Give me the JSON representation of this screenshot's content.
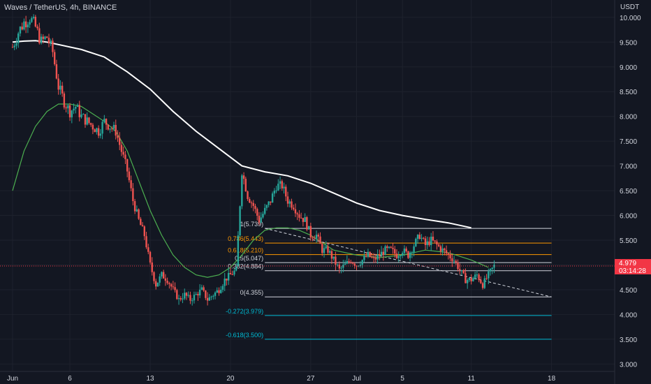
{
  "header": {
    "title": "Waves / TetherUS, 4h, BINANCE",
    "unit": "USDT"
  },
  "current_price": {
    "price": "4.979",
    "countdown": "03:14:28",
    "color": "#f23645"
  },
  "colors": {
    "background": "#131722",
    "up": "#26a69a",
    "down": "#ef5350",
    "ma_long": "#ffffff",
    "ma_short": "#4caf50",
    "fib_line": "#d1d4dc",
    "fib_orange": "#ff9800",
    "fib_teal": "#00bcd4",
    "trend": "#d1d4dc"
  },
  "chart_data": {
    "type": "candlestick",
    "title": "Waves / TetherUS, 4h, BINANCE",
    "y_axis": {
      "unit": "USDT",
      "range": [
        2.85,
        10.35
      ],
      "ticks": [
        "10.000",
        "9.500",
        "9.000",
        "8.500",
        "8.000",
        "7.500",
        "7.000",
        "6.500",
        "6.000",
        "5.500",
        "5.000",
        "4.500",
        "4.000",
        "3.500",
        "3.000"
      ]
    },
    "x_axis": {
      "range_days": [
        0,
        48
      ],
      "ticks": [
        {
          "label": "Jun",
          "day": 0
        },
        {
          "label": "6",
          "day": 5
        },
        {
          "label": "13",
          "day": 12
        },
        {
          "label": "20",
          "day": 19
        },
        {
          "label": "27",
          "day": 26
        },
        {
          "label": "Jul",
          "day": 30
        },
        {
          "label": "5",
          "day": 34
        },
        {
          "label": "11",
          "day": 40
        },
        {
          "label": "18",
          "day": 47
        }
      ]
    },
    "close_path": [
      [
        0,
        9.4
      ],
      [
        0.5,
        9.7
      ],
      [
        1,
        9.9
      ],
      [
        1.5,
        10.0
      ],
      [
        2,
        9.8
      ],
      [
        2.5,
        9.5
      ],
      [
        3,
        9.6
      ],
      [
        3.5,
        9.3
      ],
      [
        4,
        8.6
      ],
      [
        4.5,
        8.3
      ],
      [
        5,
        8.1
      ],
      [
        5.5,
        8.2
      ],
      [
        6,
        8.0
      ],
      [
        6.5,
        7.9
      ],
      [
        7,
        7.8
      ],
      [
        7.5,
        7.7
      ],
      [
        8,
        7.9
      ],
      [
        8.5,
        7.8
      ],
      [
        9,
        7.7
      ],
      [
        9.5,
        7.3
      ],
      [
        10,
        6.9
      ],
      [
        10.5,
        6.3
      ],
      [
        11,
        5.9
      ],
      [
        11.5,
        5.6
      ],
      [
        12,
        5.0
      ],
      [
        12.5,
        4.6
      ],
      [
        13,
        4.8
      ],
      [
        13.5,
        4.7
      ],
      [
        14,
        4.5
      ],
      [
        14.5,
        4.3
      ],
      [
        15,
        4.4
      ],
      [
        15.5,
        4.3
      ],
      [
        16,
        4.4
      ],
      [
        16.5,
        4.5
      ],
      [
        17,
        4.3
      ],
      [
        17.5,
        4.4
      ],
      [
        18,
        4.5
      ],
      [
        18.5,
        4.7
      ],
      [
        19,
        4.8
      ],
      [
        19.5,
        4.9
      ],
      [
        20,
        6.9
      ],
      [
        20.5,
        6.4
      ],
      [
        21,
        6.2
      ],
      [
        21.5,
        5.9
      ],
      [
        22,
        6.1
      ],
      [
        22.5,
        6.3
      ],
      [
        23,
        6.6
      ],
      [
        23.5,
        6.6
      ],
      [
        24,
        6.3
      ],
      [
        24.5,
        6.2
      ],
      [
        25,
        6.0
      ],
      [
        25.5,
        5.9
      ],
      [
        26,
        5.6
      ],
      [
        26.5,
        5.6
      ],
      [
        27,
        5.3
      ],
      [
        27.5,
        5.3
      ],
      [
        28,
        5.1
      ],
      [
        28.5,
        4.9
      ],
      [
        29,
        5.0
      ],
      [
        29.5,
        5.1
      ],
      [
        30,
        5.0
      ],
      [
        30.5,
        5.1
      ],
      [
        31,
        5.2
      ],
      [
        31.5,
        5.1
      ],
      [
        32,
        5.2
      ],
      [
        32.5,
        5.3
      ],
      [
        33,
        5.3
      ],
      [
        33.5,
        5.2
      ],
      [
        34,
        5.3
      ],
      [
        34.5,
        5.2
      ],
      [
        35,
        5.4
      ],
      [
        35.5,
        5.6
      ],
      [
        36,
        5.4
      ],
      [
        36.5,
        5.5
      ],
      [
        37,
        5.4
      ],
      [
        37.5,
        5.3
      ],
      [
        38,
        5.2
      ],
      [
        38.5,
        5.1
      ],
      [
        39,
        4.9
      ],
      [
        39.5,
        4.7
      ],
      [
        40,
        4.7
      ],
      [
        40.5,
        4.8
      ],
      [
        41,
        4.6
      ],
      [
        41.5,
        4.8
      ],
      [
        42,
        4.98
      ]
    ],
    "moving_averages": [
      {
        "color": "#ffffff",
        "points": [
          [
            0,
            9.5
          ],
          [
            1,
            9.52
          ],
          [
            2,
            9.53
          ],
          [
            3,
            9.5
          ],
          [
            4,
            9.45
          ],
          [
            6,
            9.35
          ],
          [
            8,
            9.2
          ],
          [
            10,
            8.9
          ],
          [
            12,
            8.55
          ],
          [
            14,
            8.1
          ],
          [
            16,
            7.7
          ],
          [
            18,
            7.35
          ],
          [
            20,
            7.0
          ],
          [
            22,
            6.88
          ],
          [
            24,
            6.8
          ],
          [
            26,
            6.65
          ],
          [
            28,
            6.45
          ],
          [
            30,
            6.25
          ],
          [
            32,
            6.1
          ],
          [
            34,
            6.0
          ],
          [
            36,
            5.92
          ],
          [
            38,
            5.85
          ],
          [
            40,
            5.75
          ]
        ]
      },
      {
        "color": "#4caf50",
        "points": [
          [
            0,
            6.5
          ],
          [
            1,
            7.3
          ],
          [
            2,
            7.8
          ],
          [
            3,
            8.1
          ],
          [
            4,
            8.25
          ],
          [
            5,
            8.25
          ],
          [
            6,
            8.2
          ],
          [
            7,
            8.05
          ],
          [
            8,
            7.9
          ],
          [
            9,
            7.7
          ],
          [
            10,
            7.3
          ],
          [
            11,
            6.7
          ],
          [
            12,
            6.1
          ],
          [
            13,
            5.6
          ],
          [
            14,
            5.2
          ],
          [
            15,
            4.95
          ],
          [
            16,
            4.8
          ],
          [
            17,
            4.75
          ],
          [
            18,
            4.8
          ],
          [
            19,
            4.95
          ],
          [
            20,
            5.2
          ],
          [
            21,
            5.5
          ],
          [
            22,
            5.7
          ],
          [
            23,
            5.75
          ],
          [
            24,
            5.75
          ],
          [
            25,
            5.7
          ],
          [
            26,
            5.6
          ],
          [
            27,
            5.45
          ],
          [
            28,
            5.3
          ],
          [
            30,
            5.2
          ],
          [
            32,
            5.15
          ],
          [
            34,
            5.2
          ],
          [
            36,
            5.3
          ],
          [
            38,
            5.25
          ],
          [
            40,
            5.1
          ],
          [
            41.5,
            4.95
          ]
        ]
      }
    ],
    "trendline": {
      "from": [
        22.0,
        5.739
      ],
      "to": [
        47.0,
        4.355
      ],
      "style": "dashed"
    },
    "fibonacci": {
      "x_range_days": [
        22.0,
        47.0
      ],
      "levels": [
        {
          "label": "1(5.739)",
          "value": 5.739,
          "color": "#d1d4dc"
        },
        {
          "label": "0.786(5.443)",
          "value": 5.443,
          "color": "#ff9800"
        },
        {
          "label": "0.618(5.210)",
          "value": 5.21,
          "color": "#ff9800"
        },
        {
          "label": "0.5(5.047)",
          "value": 5.047,
          "color": "#d1d4dc"
        },
        {
          "label": "0.382(4.884)",
          "value": 4.884,
          "color": "#d1d4dc"
        },
        {
          "label": "0(4.355)",
          "value": 4.355,
          "color": "#d1d4dc"
        },
        {
          "label": "-0.272(3.979)",
          "value": 3.979,
          "color": "#00bcd4"
        },
        {
          "label": "-0.618(3.500)",
          "value": 3.5,
          "color": "#00bcd4"
        }
      ]
    }
  }
}
